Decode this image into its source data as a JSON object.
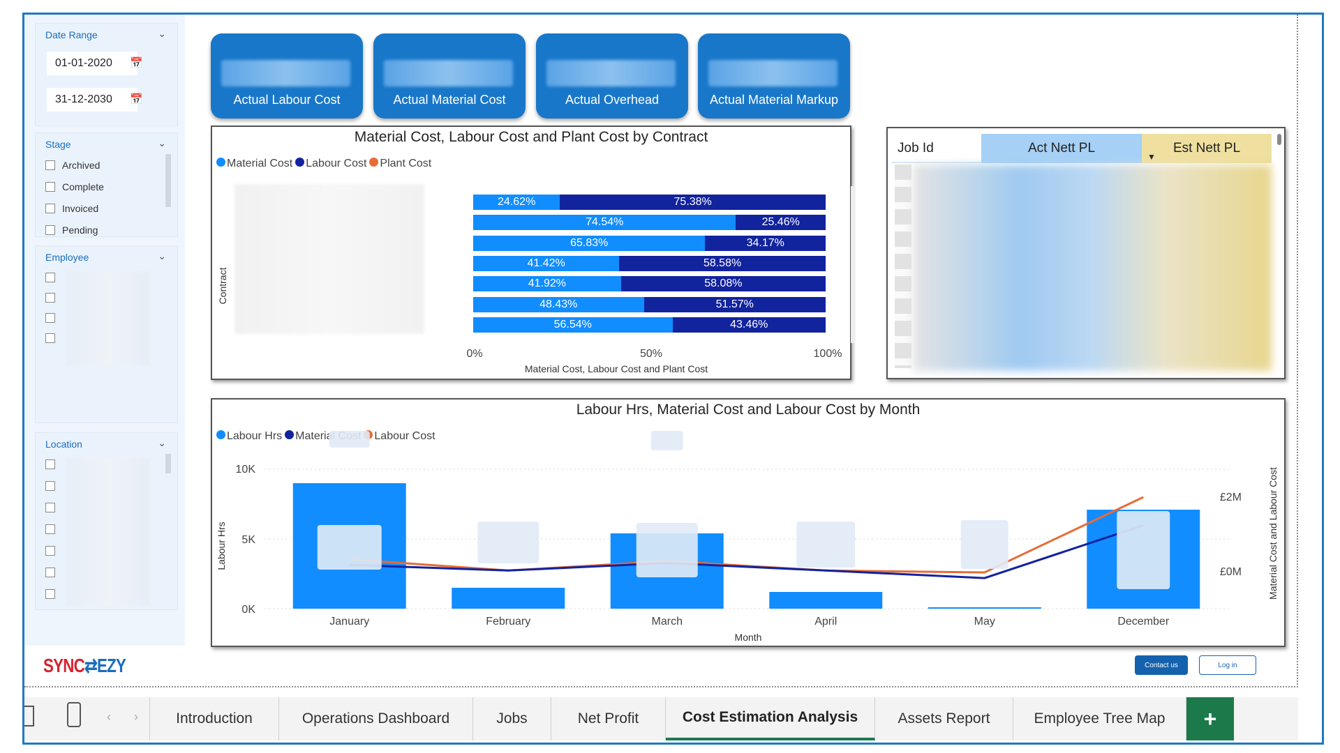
{
  "filters": {
    "date_range": {
      "title": "Date Range",
      "start": "01-01-2020",
      "end": "31-12-2030"
    },
    "stage": {
      "title": "Stage",
      "options": [
        "Archived",
        "Complete",
        "Invoiced",
        "Pending"
      ]
    },
    "employee": {
      "title": "Employee"
    },
    "location": {
      "title": "Location"
    }
  },
  "kpis": [
    {
      "label": "Actual Labour Cost"
    },
    {
      "label": "Actual Material Cost"
    },
    {
      "label": "Actual Overhead"
    },
    {
      "label": "Actual Material Markup"
    }
  ],
  "contract_chart": {
    "title": "Material Cost, Labour Cost and Plant Cost by Contract",
    "legend": [
      {
        "name": "Material Cost",
        "color": "#118dff"
      },
      {
        "name": "Labour Cost",
        "color": "#12239e"
      },
      {
        "name": "Plant Cost",
        "color": "#e66c37"
      }
    ],
    "ylabel": "Contract",
    "xlabel": "Material Cost, Labour Cost and Plant Cost",
    "xticks": [
      "0%",
      "50%",
      "100%"
    ]
  },
  "month_chart": {
    "title": "Labour Hrs, Material Cost and Labour Cost by Month",
    "legend": [
      {
        "name": "Labour Hrs",
        "color": "#118dff"
      },
      {
        "name": "Material Cost",
        "color": "#12239e"
      },
      {
        "name": "Labour Cost",
        "color": "#e66c37"
      }
    ],
    "ylabel_left": "Labour Hrs",
    "ylabel_right": "Material Cost and Labour Cost",
    "xlabel": "Month",
    "yticks_left": [
      "10K",
      "5K",
      "0K"
    ],
    "yticks_right": [
      "£2M",
      "£0M"
    ]
  },
  "table": {
    "columns": [
      "Job Id",
      "Act Nett PL",
      "Est Nett PL"
    ]
  },
  "brand": {
    "logo_text": "SYNC EZY"
  },
  "footer": {
    "contact": "Contact us",
    "login": "Log in"
  },
  "tabs": [
    "Introduction",
    "Operations Dashboard",
    "Jobs",
    "Net Profit",
    "Cost Estimation Analysis",
    "Assets Report",
    "Employee Tree Map"
  ],
  "active_tab": "Cost Estimation Analysis",
  "add_tab_label": "+",
  "chart_data": [
    {
      "type": "bar",
      "orientation": "horizontal-100%-stacked",
      "title": "Material Cost, Labour Cost and Plant Cost by Contract",
      "xlabel": "Material Cost, Labour Cost and Plant Cost",
      "ylabel": "Contract",
      "xlim": [
        0,
        100
      ],
      "series": [
        {
          "name": "Material Cost",
          "values": [
            24.62,
            74.54,
            65.83,
            41.42,
            41.92,
            48.43,
            56.54
          ]
        },
        {
          "name": "Labour Cost",
          "values": [
            75.38,
            25.46,
            34.17,
            58.58,
            58.08,
            51.57,
            43.46
          ]
        }
      ],
      "data_labels": {
        "Material Cost": [
          "24.62%",
          "74.54%",
          "65.83%",
          "41.42%",
          "41.92%",
          "48.43%",
          "56.54%"
        ],
        "Labour Cost": [
          "75.38%",
          "25.46%",
          "34.17%",
          "58.58%",
          "58.08%",
          "51.57%",
          "43.46%"
        ]
      },
      "legend": "top-left"
    },
    {
      "type": "bar",
      "title": "Labour Hrs, Material Cost and Labour Cost by Month",
      "categories": [
        "January",
        "February",
        "March",
        "April",
        "May",
        "December"
      ],
      "xlabel": "Month",
      "ylabel": "Labour Hrs",
      "ylim": [
        0,
        10000
      ],
      "y2label": "Material Cost and Labour Cost",
      "series": [
        {
          "name": "Labour Hrs",
          "type": "bar",
          "values": [
            9000,
            1500,
            5400,
            1200,
            100,
            7100
          ]
        },
        {
          "name": "Material Cost",
          "type": "line",
          "axis": "right",
          "values": [
            0.2,
            0.05,
            0.25,
            0.05,
            -0.15,
            1.25
          ]
        },
        {
          "name": "Labour Cost",
          "type": "line",
          "axis": "right",
          "values": [
            0.35,
            0.05,
            0.3,
            0.05,
            0.0,
            2.0
          ]
        }
      ],
      "grid": true,
      "legend": "top-left"
    }
  ]
}
